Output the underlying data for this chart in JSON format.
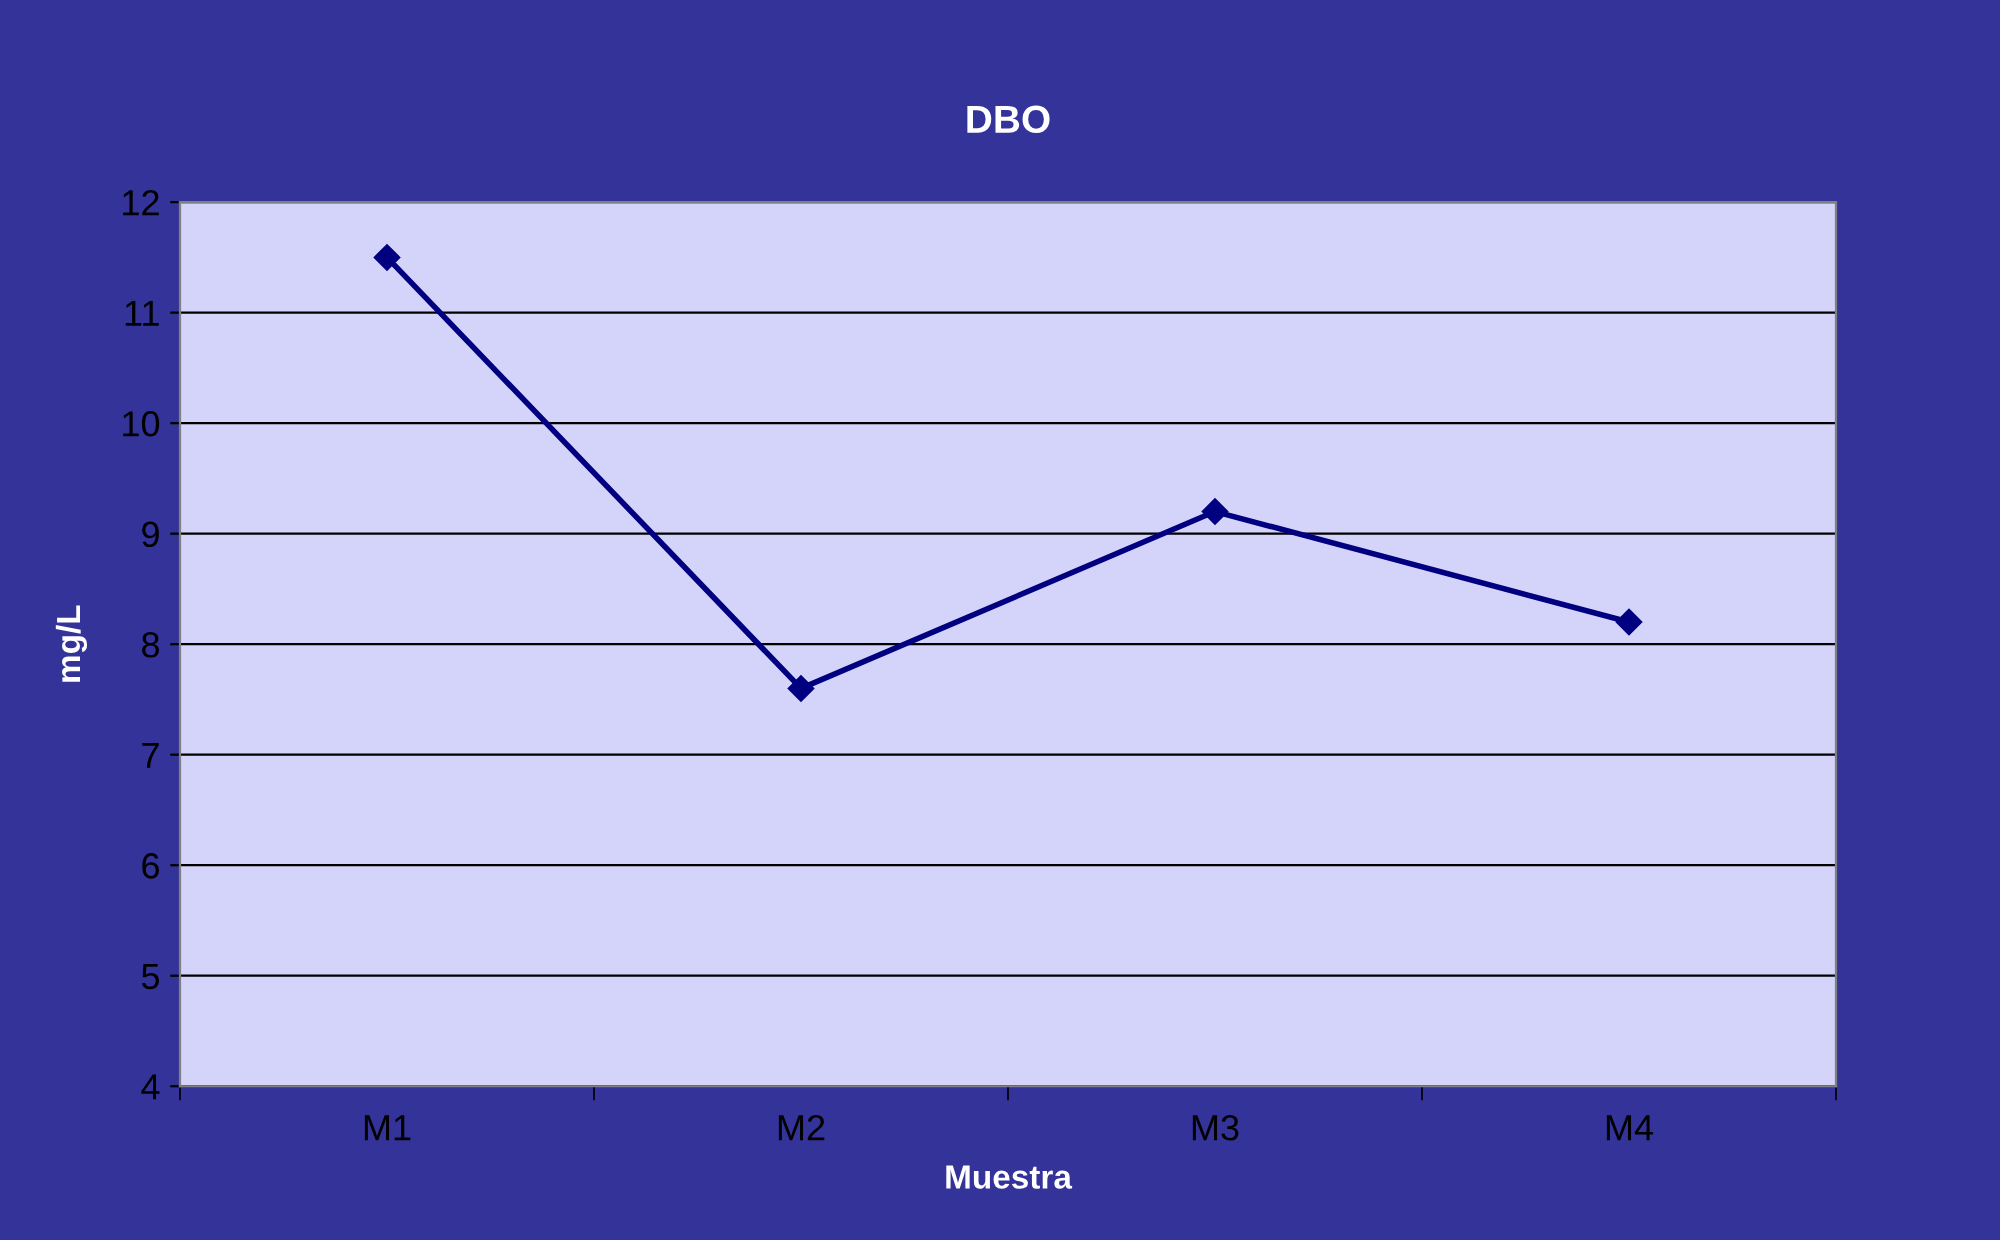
{
  "chart_data": {
    "type": "line",
    "title": "DBO",
    "xlabel": "Muestra",
    "ylabel": "mg/L",
    "categories": [
      "M1",
      "M2",
      "M3",
      "M4"
    ],
    "series": [
      {
        "color": "#000080",
        "values": [
          11.5,
          7.6,
          9.2,
          8.2
        ]
      }
    ],
    "ylim": [
      4,
      12
    ],
    "yticks": [
      4,
      5,
      6,
      7,
      8,
      9,
      10,
      11,
      12
    ],
    "grid": "y",
    "marker": "diamond",
    "line_style": "solid"
  }
}
